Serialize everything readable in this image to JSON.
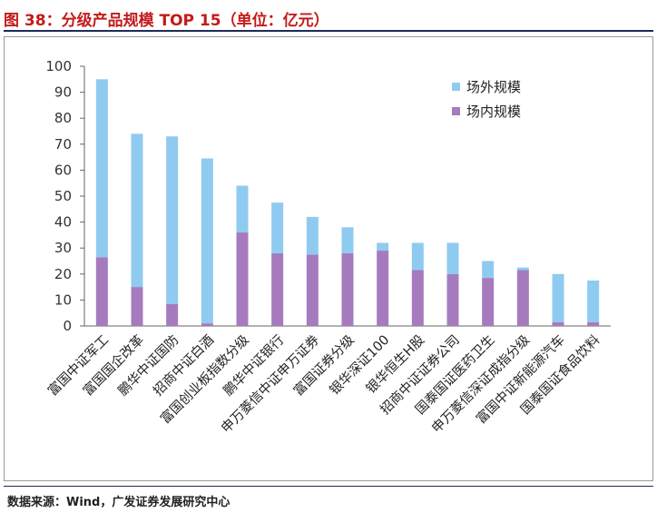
{
  "figure": {
    "title": "图 38：分级产品规模 TOP 15（单位：亿元）",
    "source": "数据来源：Wind，广发证券发展研究中心"
  },
  "chart_data": {
    "type": "bar",
    "stacked": true,
    "categories": [
      "富国中证军工",
      "富国国企改革",
      "鹏华中证国防",
      "招商中证白酒",
      "富国创业板指数分级",
      "鹏华中证银行",
      "申万菱信中证申万证券",
      "富国证券分级",
      "银华深证100",
      "银华恒生H股",
      "招商中证证券公司",
      "国泰国证医药卫生",
      "申万菱信深证成指分级",
      "富国中证新能源汽车",
      "国泰国证食品饮料"
    ],
    "series": [
      {
        "name": "场内规模",
        "color": "#a67bbd",
        "values": [
          26.5,
          15,
          8.5,
          1,
          36,
          28,
          27.5,
          28,
          29,
          21.5,
          20,
          18.5,
          21.5,
          1.5,
          1.5
        ]
      },
      {
        "name": "场外规模",
        "color": "#8fcbf0",
        "values": [
          68.5,
          59,
          64.5,
          63.5,
          18,
          19.5,
          14.5,
          10,
          3,
          10.5,
          12,
          6.5,
          1,
          18.5,
          16
        ]
      }
    ],
    "ylim": [
      0,
      100
    ],
    "yticks": [
      "0",
      "10",
      "20",
      "30",
      "40",
      "50",
      "60",
      "70",
      "80",
      "90",
      "100"
    ],
    "legend": {
      "position": "top-right",
      "order": [
        "场外规模",
        "场内规模"
      ]
    },
    "grid": false
  }
}
